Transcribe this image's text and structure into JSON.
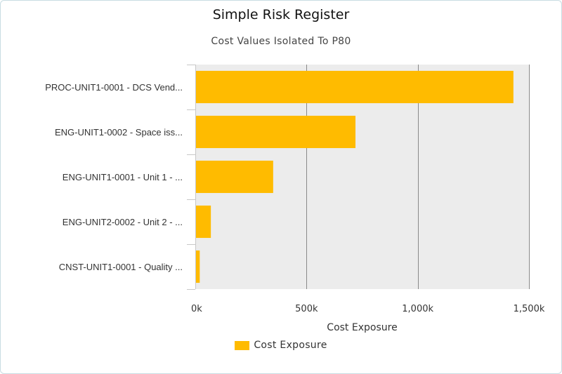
{
  "chart_data": {
    "type": "bar",
    "orientation": "horizontal",
    "title": "Simple Risk Register",
    "subtitle": "Cost Values Isolated To P80",
    "categories": [
      "PROC-UNIT1-0001 - DCS Vend...",
      "ENG-UNIT1-0002 - Space iss...",
      "ENG-UNIT1-0001 - Unit 1 - ...",
      "ENG-UNIT2-0002 - Unit 2 - ...",
      "CNST-UNIT1-0001 - Quality ..."
    ],
    "series": [
      {
        "name": "Cost Exposure",
        "values": [
          1430,
          720,
          350,
          70,
          20
        ],
        "color": "#ffbb00"
      }
    ],
    "xlabel": "Cost Exposure",
    "ylabel": "",
    "xlim": [
      0,
      1500
    ],
    "xticks": [
      {
        "value": 0,
        "label": "0k"
      },
      {
        "value": 500,
        "label": "500k"
      },
      {
        "value": 1000,
        "label": "1,000k"
      },
      {
        "value": 1500,
        "label": "1,500k"
      }
    ],
    "grid": true,
    "legend": "bottom-center",
    "plot_background": "#ececec",
    "gridline_color": "#8a8a8a"
  }
}
